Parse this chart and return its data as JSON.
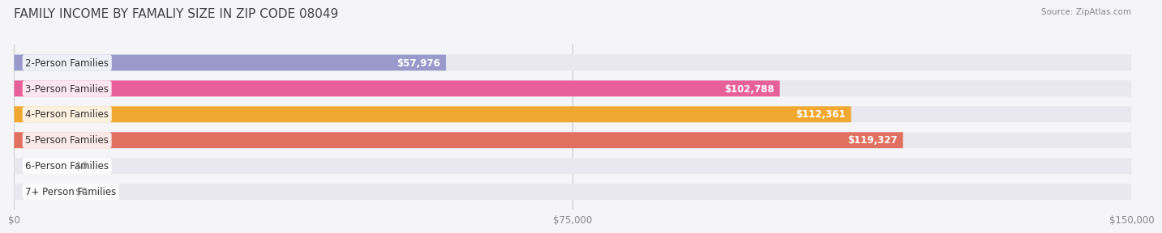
{
  "title": "FAMILY INCOME BY FAMALIY SIZE IN ZIP CODE 08049",
  "source": "Source: ZipAtlas.com",
  "categories": [
    "2-Person Families",
    "3-Person Families",
    "4-Person Families",
    "5-Person Families",
    "6-Person Families",
    "7+ Person Families"
  ],
  "values": [
    57976,
    102788,
    112361,
    119327,
    0,
    0
  ],
  "value_labels": [
    "$57,976",
    "$102,788",
    "$112,361",
    "$119,327",
    "$0",
    "$0"
  ],
  "bar_colors": [
    "#9999cc",
    "#e8609a",
    "#f0a830",
    "#e07060",
    "#aabbd0",
    "#c0adc8"
  ],
  "bar_bg_color": "#e8e8ee",
  "xlim": [
    0,
    150000
  ],
  "xticks": [
    0,
    75000,
    150000
  ],
  "xticklabels": [
    "$0",
    "$75,000",
    "$150,000"
  ],
  "title_fontsize": 11,
  "label_fontsize": 8.5,
  "value_label_color_inside": "#ffffff",
  "value_label_color_outside": "#888888",
  "bar_height": 0.62,
  "background_color": "#f5f5f8"
}
